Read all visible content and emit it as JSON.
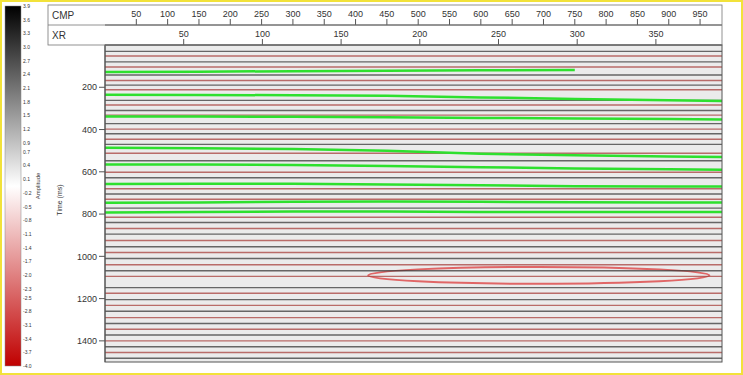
{
  "chart_data": {
    "type": "line",
    "ylabel": "Time (ms)",
    "xlabel": "XR",
    "x2label": "CMP",
    "x": [
      0,
      150,
      300,
      450,
      600,
      750,
      900,
      985
    ],
    "xlim": [
      0,
      985
    ],
    "xticks": [
      50,
      100,
      150,
      200,
      250,
      300,
      350,
      400,
      450,
      500,
      550,
      600,
      650,
      700,
      750,
      800,
      850,
      900,
      950
    ],
    "x2lim": [
      0,
      392
    ],
    "x2ticks": [
      50,
      100,
      150,
      200,
      250,
      300,
      350
    ],
    "ylim": [
      0,
      1500
    ],
    "yticks": [
      200,
      400,
      600,
      800,
      1000,
      1200,
      1400
    ],
    "grid": false,
    "series": [
      {
        "color": "#2ee02e",
        "values": [
          128,
          126,
          124,
          122,
          120,
          118,
          null,
          null
        ]
      },
      {
        "color": "#2ee02e",
        "values": [
          235,
          236,
          238,
          240,
          248,
          255,
          262,
          265
        ]
      },
      {
        "color": "#2ee02e",
        "values": [
          338,
          338,
          340,
          342,
          345,
          348,
          350,
          352
        ]
      },
      {
        "color": "#2ee02e",
        "values": [
          486,
          488,
          492,
          500,
          515,
          522,
          528,
          530
        ]
      },
      {
        "color": "#2ee02e",
        "values": [
          566,
          566,
          568,
          572,
          578,
          584,
          588,
          590
        ]
      },
      {
        "color": "#2ee02e",
        "values": [
          658,
          656,
          656,
          660,
          664,
          668,
          670,
          670
        ]
      },
      {
        "color": "#2ee02e",
        "values": [
          746,
          745,
          742,
          740,
          742,
          744,
          745,
          745
        ]
      },
      {
        "color": "#2ee02e",
        "values": [
          792,
          790,
          788,
          788,
          790,
          790,
          790,
          790
        ]
      }
    ],
    "reflectors": {
      "times": [
        30,
        52,
        80,
        104,
        142,
        168,
        190,
        212,
        262,
        284,
        310,
        332,
        372,
        398,
        420,
        446,
        470,
        512,
        548,
        602,
        628,
        680,
        705,
        730,
        772,
        815,
        840,
        868,
        895,
        925,
        955,
        982,
        1010,
        1040,
        1068,
        1095,
        1148,
        1175,
        1205,
        1232,
        1260,
        1290,
        1318,
        1345,
        1372,
        1400,
        1428,
        1455,
        1482
      ],
      "colors": [
        "#3a3a3a",
        "#a8423e"
      ]
    },
    "annotations": [
      {
        "shape": "ellipse",
        "x": [
          420,
          965
        ],
        "y": [
          1050,
          1130
        ],
        "color": "#e06666"
      }
    ],
    "colorbar": {
      "label": "Amplitude",
      "range": [
        -4,
        3.9
      ],
      "colors": [
        "#000000",
        "#ffffff",
        "#c00000"
      ],
      "ticks": [
        3.9,
        3.6,
        3.3,
        {
          "value": 3,
          "label": "3.0"
        },
        2.7,
        2.4,
        2.1,
        1.8,
        1.5,
        1.2,
        0.9,
        0.7,
        0.4,
        0.1,
        -0.2,
        -0.5,
        -0.8,
        -1.1,
        -1.4,
        -1.7,
        {
          "value": -2,
          "label": "-2.0"
        },
        -2.3,
        -2.5,
        -2.8,
        -3.1,
        -3.4,
        -3.7,
        {
          "value": -4,
          "label": "-4.0"
        }
      ]
    }
  }
}
